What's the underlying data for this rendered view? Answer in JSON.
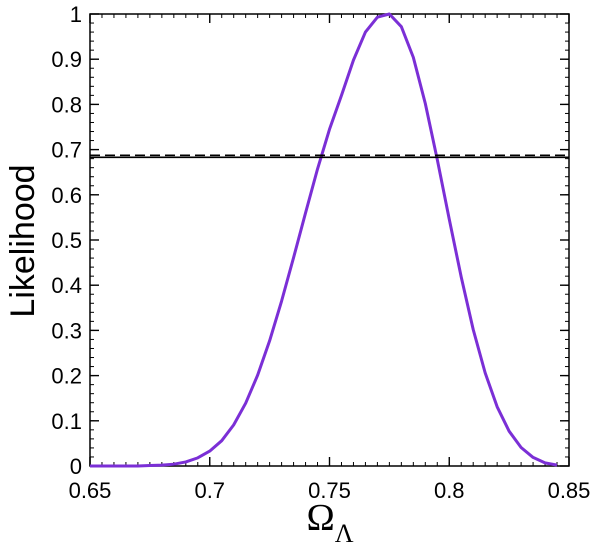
{
  "chart_data": {
    "type": "line",
    "title": "",
    "xlabel_symbol": "Ω",
    "xlabel_subscript": "Λ",
    "ylabel": "Likelihood",
    "xlim": [
      0.65,
      0.85
    ],
    "ylim": [
      0,
      1
    ],
    "x_ticks": [
      "0.65",
      "0.7",
      "0.75",
      "0.8",
      "0.85"
    ],
    "y_ticks": [
      "0",
      "0.1",
      "0.2",
      "0.3",
      "0.4",
      "0.5",
      "0.6",
      "0.7",
      "0.8",
      "0.9",
      "1"
    ],
    "grid": false,
    "series": [
      {
        "color": "#7b2fd6",
        "style": "solid",
        "x": [
          0.65,
          0.655,
          0.66,
          0.665,
          0.67,
          0.675,
          0.68,
          0.685,
          0.69,
          0.695,
          0.7,
          0.705,
          0.71,
          0.715,
          0.72,
          0.725,
          0.73,
          0.735,
          0.74,
          0.745,
          0.75,
          0.755,
          0.76,
          0.765,
          0.77,
          0.775,
          0.78,
          0.785,
          0.79,
          0.795,
          0.8,
          0.805,
          0.81,
          0.815,
          0.82,
          0.825,
          0.83,
          0.835,
          0.84,
          0.845
        ],
        "y": [
          0.0,
          0.0,
          0.0,
          0.0,
          0.0,
          0.001,
          0.002,
          0.004,
          0.009,
          0.018,
          0.033,
          0.056,
          0.091,
          0.139,
          0.201,
          0.277,
          0.365,
          0.461,
          0.56,
          0.657,
          0.745,
          0.82,
          0.898,
          0.96,
          0.993,
          1.0,
          0.972,
          0.904,
          0.802,
          0.678,
          0.546,
          0.418,
          0.302,
          0.206,
          0.131,
          0.077,
          0.041,
          0.019,
          0.007,
          0.002
        ]
      },
      {
        "color": "#000000",
        "style": "solid",
        "x": [
          0.65,
          0.85
        ],
        "y": [
          0.683,
          0.683
        ]
      }
    ]
  }
}
